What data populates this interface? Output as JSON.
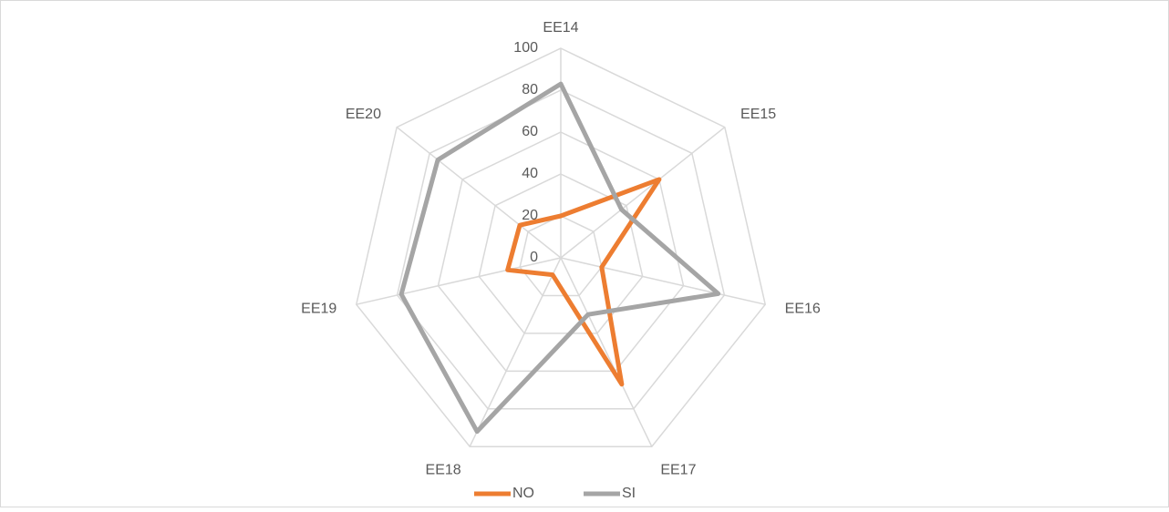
{
  "chart_data": {
    "type": "radar",
    "categories": [
      "EE14",
      "EE15",
      "EE16",
      "EE17",
      "EE18",
      "EE19",
      "EE20"
    ],
    "series": [
      {
        "name": "NO",
        "color": "#ed7d31",
        "values": [
          20,
          60,
          20,
          67,
          9,
          26,
          25
        ]
      },
      {
        "name": "SI",
        "color": "#a5a5a5",
        "values": [
          83,
          37,
          77,
          30,
          92,
          78,
          75
        ]
      }
    ],
    "ylim": [
      0,
      100
    ],
    "yticks": [
      0,
      20,
      40,
      60,
      80,
      100
    ],
    "grid": true,
    "legend": "bottom"
  }
}
